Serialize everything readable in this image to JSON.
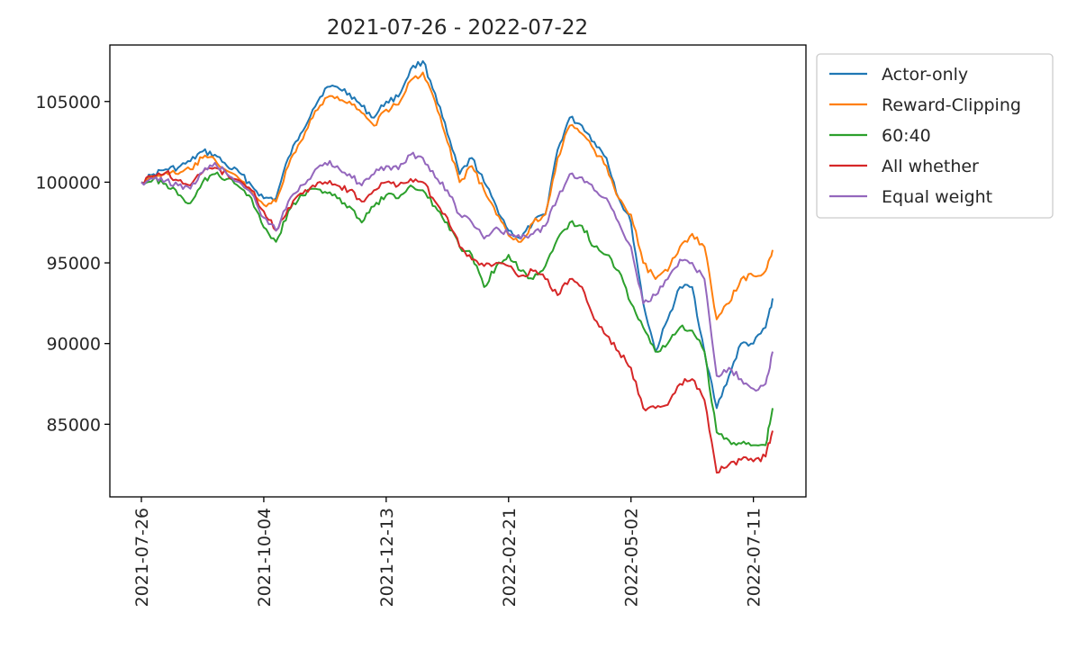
{
  "chart_data": {
    "type": "line",
    "title": "2021-07-26 - 2022-07-22",
    "xlabel": "",
    "ylabel": "",
    "x_start": "2021-07-26",
    "x_end": "2022-07-22",
    "x_ticks": [
      "2021-07-26",
      "2021-10-04",
      "2021-12-13",
      "2022-02-21",
      "2022-05-02",
      "2022-07-11"
    ],
    "y_ticks": [
      85000,
      90000,
      95000,
      100000,
      105000
    ],
    "ylim": [
      80500,
      108500
    ],
    "grid": false,
    "legend_position": "outside-top-right",
    "series": [
      {
        "name": "Actor-only",
        "color": "#1f77b4",
        "points": [
          [
            "2021-07-26",
            100000
          ],
          [
            "2021-08-02",
            100500
          ],
          [
            "2021-08-09",
            100800
          ],
          [
            "2021-08-16",
            100900
          ],
          [
            "2021-08-23",
            101300
          ],
          [
            "2021-08-30",
            101900
          ],
          [
            "2021-09-06",
            101700
          ],
          [
            "2021-09-13",
            101000
          ],
          [
            "2021-09-20",
            100600
          ],
          [
            "2021-09-27",
            99800
          ],
          [
            "2021-10-04",
            99000
          ],
          [
            "2021-10-11",
            99000
          ],
          [
            "2021-10-18",
            101500
          ],
          [
            "2021-10-25",
            103000
          ],
          [
            "2021-11-01",
            104500
          ],
          [
            "2021-11-08",
            105800
          ],
          [
            "2021-11-15",
            105900
          ],
          [
            "2021-11-22",
            105500
          ],
          [
            "2021-11-29",
            104700
          ],
          [
            "2021-12-06",
            104000
          ],
          [
            "2021-12-13",
            105000
          ],
          [
            "2021-12-20",
            105300
          ],
          [
            "2021-12-27",
            107000
          ],
          [
            "2022-01-03",
            107500
          ],
          [
            "2022-01-10",
            105500
          ],
          [
            "2022-01-17",
            103000
          ],
          [
            "2022-01-24",
            100500
          ],
          [
            "2022-01-31",
            101500
          ],
          [
            "2022-02-07",
            100000
          ],
          [
            "2022-02-14",
            98500
          ],
          [
            "2022-02-21",
            97000
          ],
          [
            "2022-02-28",
            96500
          ],
          [
            "2022-03-07",
            97500
          ],
          [
            "2022-03-14",
            98000
          ],
          [
            "2022-03-21",
            102000
          ],
          [
            "2022-03-28",
            104000
          ],
          [
            "2022-04-04",
            103500
          ],
          [
            "2022-04-11",
            102500
          ],
          [
            "2022-04-18",
            101500
          ],
          [
            "2022-04-25",
            99000
          ],
          [
            "2022-05-02",
            97500
          ],
          [
            "2022-05-09",
            92500
          ],
          [
            "2022-05-16",
            89500
          ],
          [
            "2022-05-23",
            91500
          ],
          [
            "2022-05-30",
            93500
          ],
          [
            "2022-06-06",
            93500
          ],
          [
            "2022-06-13",
            89500
          ],
          [
            "2022-06-20",
            86000
          ],
          [
            "2022-06-27",
            88000
          ],
          [
            "2022-07-04",
            90000
          ],
          [
            "2022-07-11",
            90000
          ],
          [
            "2022-07-18",
            91000
          ],
          [
            "2022-07-22",
            92800
          ]
        ]
      },
      {
        "name": "Reward-Clipping",
        "color": "#ff7f0e",
        "points": [
          [
            "2021-07-26",
            100000
          ],
          [
            "2021-08-02",
            100300
          ],
          [
            "2021-08-09",
            100600
          ],
          [
            "2021-08-16",
            100500
          ],
          [
            "2021-08-23",
            100800
          ],
          [
            "2021-08-30",
            101500
          ],
          [
            "2021-09-06",
            101400
          ],
          [
            "2021-09-13",
            100700
          ],
          [
            "2021-09-20",
            100200
          ],
          [
            "2021-09-27",
            99400
          ],
          [
            "2021-10-04",
            98600
          ],
          [
            "2021-10-11",
            98800
          ],
          [
            "2021-10-18",
            101000
          ],
          [
            "2021-10-25",
            102500
          ],
          [
            "2021-11-01",
            104000
          ],
          [
            "2021-11-08",
            105200
          ],
          [
            "2021-11-15",
            105300
          ],
          [
            "2021-11-22",
            105000
          ],
          [
            "2021-11-29",
            104300
          ],
          [
            "2021-12-06",
            103500
          ],
          [
            "2021-12-13",
            104500
          ],
          [
            "2021-12-20",
            104800
          ],
          [
            "2021-12-27",
            106300
          ],
          [
            "2022-01-03",
            106800
          ],
          [
            "2022-01-10",
            105000
          ],
          [
            "2022-01-17",
            102500
          ],
          [
            "2022-01-24",
            100000
          ],
          [
            "2022-01-31",
            101000
          ],
          [
            "2022-02-07",
            99500
          ],
          [
            "2022-02-14",
            98000
          ],
          [
            "2022-02-21",
            96700
          ],
          [
            "2022-02-28",
            96300
          ],
          [
            "2022-03-07",
            97500
          ],
          [
            "2022-03-14",
            98000
          ],
          [
            "2022-03-21",
            101500
          ],
          [
            "2022-03-28",
            103500
          ],
          [
            "2022-04-04",
            103000
          ],
          [
            "2022-04-11",
            102000
          ],
          [
            "2022-04-18",
            101000
          ],
          [
            "2022-04-25",
            99000
          ],
          [
            "2022-05-02",
            98000
          ],
          [
            "2022-05-09",
            95000
          ],
          [
            "2022-05-16",
            94000
          ],
          [
            "2022-05-23",
            94500
          ],
          [
            "2022-05-30",
            96000
          ],
          [
            "2022-06-06",
            96800
          ],
          [
            "2022-06-13",
            96000
          ],
          [
            "2022-06-20",
            91500
          ],
          [
            "2022-06-27",
            92500
          ],
          [
            "2022-07-04",
            94000
          ],
          [
            "2022-07-11",
            94200
          ],
          [
            "2022-07-18",
            94500
          ],
          [
            "2022-07-22",
            95800
          ]
        ]
      },
      {
        "name": "60:40",
        "color": "#2ca02c",
        "points": [
          [
            "2021-07-26",
            100000
          ],
          [
            "2021-08-02",
            100200
          ],
          [
            "2021-08-09",
            99900
          ],
          [
            "2021-08-16",
            99200
          ],
          [
            "2021-08-23",
            98700
          ],
          [
            "2021-08-30",
            100000
          ],
          [
            "2021-09-06",
            100500
          ],
          [
            "2021-09-13",
            100200
          ],
          [
            "2021-09-20",
            99700
          ],
          [
            "2021-09-27",
            99000
          ],
          [
            "2021-10-04",
            97200
          ],
          [
            "2021-10-11",
            96300
          ],
          [
            "2021-10-18",
            98200
          ],
          [
            "2021-10-25",
            99200
          ],
          [
            "2021-11-01",
            99600
          ],
          [
            "2021-11-08",
            99400
          ],
          [
            "2021-11-15",
            99000
          ],
          [
            "2021-11-22",
            98500
          ],
          [
            "2021-11-29",
            97500
          ],
          [
            "2021-12-06",
            98500
          ],
          [
            "2021-12-13",
            99200
          ],
          [
            "2021-12-20",
            99000
          ],
          [
            "2021-12-27",
            99800
          ],
          [
            "2022-01-03",
            99500
          ],
          [
            "2022-01-10",
            98500
          ],
          [
            "2022-01-17",
            97500
          ],
          [
            "2022-01-24",
            96000
          ],
          [
            "2022-01-31",
            95500
          ],
          [
            "2022-02-07",
            93500
          ],
          [
            "2022-02-14",
            94800
          ],
          [
            "2022-02-21",
            95500
          ],
          [
            "2022-02-28",
            94500
          ],
          [
            "2022-03-07",
            94000
          ],
          [
            "2022-03-14",
            94800
          ],
          [
            "2022-03-21",
            96500
          ],
          [
            "2022-03-28",
            97500
          ],
          [
            "2022-04-04",
            97300
          ],
          [
            "2022-04-11",
            96000
          ],
          [
            "2022-04-18",
            95500
          ],
          [
            "2022-04-25",
            94500
          ],
          [
            "2022-05-02",
            92500
          ],
          [
            "2022-05-09",
            91000
          ],
          [
            "2022-05-16",
            89500
          ],
          [
            "2022-05-23",
            90000
          ],
          [
            "2022-05-30",
            91000
          ],
          [
            "2022-06-06",
            90800
          ],
          [
            "2022-06-13",
            89500
          ],
          [
            "2022-06-20",
            84500
          ],
          [
            "2022-06-27",
            84000
          ],
          [
            "2022-07-04",
            83800
          ],
          [
            "2022-07-11",
            83700
          ],
          [
            "2022-07-18",
            83700
          ],
          [
            "2022-07-22",
            86000
          ]
        ]
      },
      {
        "name": "All whether",
        "color": "#d62728",
        "points": [
          [
            "2021-07-26",
            100000
          ],
          [
            "2021-08-02",
            100400
          ],
          [
            "2021-08-09",
            100600
          ],
          [
            "2021-08-16",
            100100
          ],
          [
            "2021-08-23",
            99800
          ],
          [
            "2021-08-30",
            100600
          ],
          [
            "2021-09-06",
            100900
          ],
          [
            "2021-09-13",
            100500
          ],
          [
            "2021-09-20",
            100100
          ],
          [
            "2021-09-27",
            99500
          ],
          [
            "2021-10-04",
            98200
          ],
          [
            "2021-10-11",
            97000
          ],
          [
            "2021-10-18",
            98400
          ],
          [
            "2021-10-25",
            99300
          ],
          [
            "2021-11-01",
            99800
          ],
          [
            "2021-11-08",
            100000
          ],
          [
            "2021-11-15",
            99800
          ],
          [
            "2021-11-22",
            99500
          ],
          [
            "2021-11-29",
            98800
          ],
          [
            "2021-12-06",
            99500
          ],
          [
            "2021-12-13",
            100000
          ],
          [
            "2021-12-20",
            99800
          ],
          [
            "2021-12-27",
            100200
          ],
          [
            "2022-01-03",
            100000
          ],
          [
            "2022-01-10",
            98800
          ],
          [
            "2022-01-17",
            97800
          ],
          [
            "2022-01-24",
            96000
          ],
          [
            "2022-01-31",
            95200
          ],
          [
            "2022-02-07",
            94800
          ],
          [
            "2022-02-14",
            95000
          ],
          [
            "2022-02-21",
            94800
          ],
          [
            "2022-02-28",
            94200
          ],
          [
            "2022-03-07",
            94500
          ],
          [
            "2022-03-14",
            94000
          ],
          [
            "2022-03-21",
            93000
          ],
          [
            "2022-03-28",
            94000
          ],
          [
            "2022-04-04",
            93500
          ],
          [
            "2022-04-11",
            91500
          ],
          [
            "2022-04-18",
            90500
          ],
          [
            "2022-04-25",
            89500
          ],
          [
            "2022-05-02",
            88500
          ],
          [
            "2022-05-09",
            86000
          ],
          [
            "2022-05-16",
            86000
          ],
          [
            "2022-05-23",
            86200
          ],
          [
            "2022-05-30",
            87500
          ],
          [
            "2022-06-06",
            87800
          ],
          [
            "2022-06-13",
            86500
          ],
          [
            "2022-06-20",
            82000
          ],
          [
            "2022-06-27",
            82500
          ],
          [
            "2022-07-04",
            82800
          ],
          [
            "2022-07-11",
            82700
          ],
          [
            "2022-07-18",
            83000
          ],
          [
            "2022-07-22",
            84600
          ]
        ]
      },
      {
        "name": "Equal weight",
        "color": "#9467bd",
        "points": [
          [
            "2021-07-26",
            100000
          ],
          [
            "2021-08-02",
            100200
          ],
          [
            "2021-08-09",
            100100
          ],
          [
            "2021-08-16",
            99800
          ],
          [
            "2021-08-23",
            99600
          ],
          [
            "2021-08-30",
            100600
          ],
          [
            "2021-09-06",
            101200
          ],
          [
            "2021-09-13",
            100500
          ],
          [
            "2021-09-20",
            100000
          ],
          [
            "2021-09-27",
            99300
          ],
          [
            "2021-10-04",
            97800
          ],
          [
            "2021-10-11",
            97000
          ],
          [
            "2021-10-18",
            98800
          ],
          [
            "2021-10-25",
            99800
          ],
          [
            "2021-11-01",
            100500
          ],
          [
            "2021-11-08",
            101200
          ],
          [
            "2021-11-15",
            101000
          ],
          [
            "2021-11-22",
            100500
          ],
          [
            "2021-11-29",
            99800
          ],
          [
            "2021-12-06",
            100500
          ],
          [
            "2021-12-13",
            101000
          ],
          [
            "2021-12-20",
            100800
          ],
          [
            "2021-12-27",
            101700
          ],
          [
            "2022-01-03",
            101500
          ],
          [
            "2022-01-10",
            100300
          ],
          [
            "2022-01-17",
            99500
          ],
          [
            "2022-01-24",
            98000
          ],
          [
            "2022-01-31",
            97500
          ],
          [
            "2022-02-07",
            96500
          ],
          [
            "2022-02-14",
            97200
          ],
          [
            "2022-02-21",
            96800
          ],
          [
            "2022-02-28",
            96500
          ],
          [
            "2022-03-07",
            96800
          ],
          [
            "2022-03-14",
            97300
          ],
          [
            "2022-03-21",
            99000
          ],
          [
            "2022-03-28",
            100500
          ],
          [
            "2022-04-04",
            100300
          ],
          [
            "2022-04-11",
            99500
          ],
          [
            "2022-04-18",
            99000
          ],
          [
            "2022-04-25",
            97500
          ],
          [
            "2022-05-02",
            96000
          ],
          [
            "2022-05-09",
            92500
          ],
          [
            "2022-05-16",
            93000
          ],
          [
            "2022-05-23",
            94000
          ],
          [
            "2022-05-30",
            95200
          ],
          [
            "2022-06-06",
            95000
          ],
          [
            "2022-06-13",
            94000
          ],
          [
            "2022-06-20",
            88000
          ],
          [
            "2022-06-27",
            88500
          ],
          [
            "2022-07-04",
            87800
          ],
          [
            "2022-07-11",
            87200
          ],
          [
            "2022-07-18",
            87500
          ],
          [
            "2022-07-22",
            89500
          ]
        ]
      }
    ]
  }
}
